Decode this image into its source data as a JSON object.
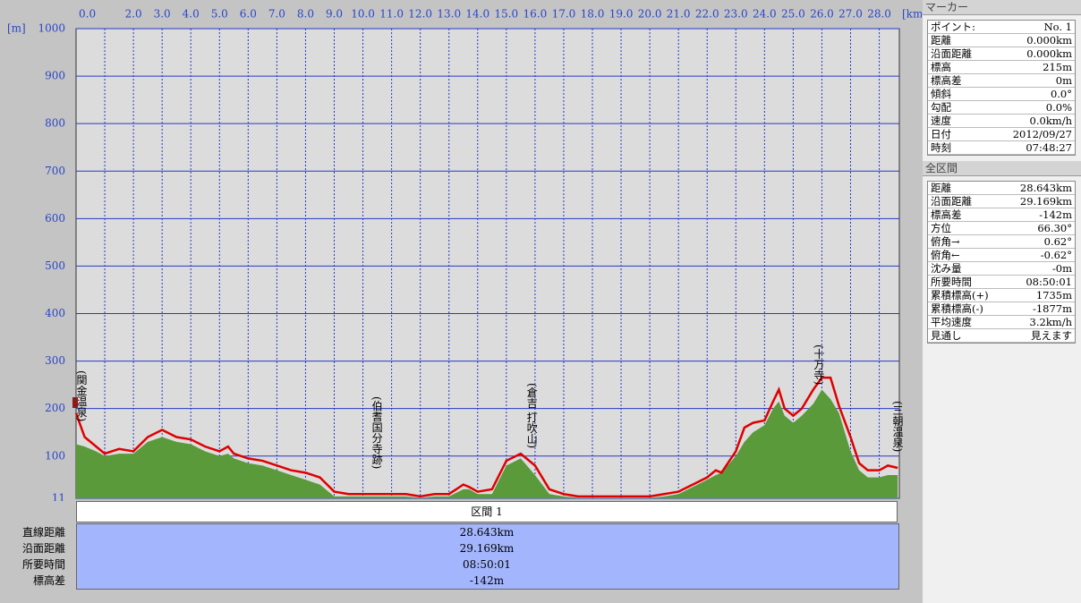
{
  "chart_data": {
    "type": "area-line",
    "y_unit": "[m]",
    "x_unit": "[km]",
    "x": [
      0,
      0.3,
      0.7,
      1,
      1.5,
      2,
      2.5,
      3,
      3.5,
      4,
      4.5,
      5,
      5.3,
      5.5,
      6,
      6.5,
      7,
      7.5,
      8,
      8.5,
      9,
      9.5,
      10,
      10.5,
      11,
      11.5,
      12,
      12.5,
      13,
      13.5,
      13.7,
      14,
      14.5,
      15,
      15.5,
      16,
      16.5,
      17,
      17.5,
      18,
      18.5,
      19,
      19.5,
      20,
      20.5,
      21,
      21.5,
      22,
      22.3,
      22.5,
      23,
      23.3,
      23.6,
      24,
      24.3,
      24.5,
      24.7,
      25,
      25.3,
      25.7,
      26,
      26.3,
      26.6,
      27,
      27.3,
      27.6,
      28,
      28.3,
      28.643
    ],
    "series": [
      {
        "kind": "area",
        "color": "#5a9a3a",
        "values": [
          125,
          120,
          110,
          100,
          105,
          105,
          130,
          140,
          130,
          125,
          110,
          100,
          105,
          95,
          85,
          80,
          70,
          60,
          50,
          40,
          15,
          15,
          15,
          15,
          15,
          15,
          12,
          15,
          15,
          30,
          30,
          20,
          20,
          80,
          95,
          60,
          20,
          15,
          12,
          12,
          12,
          12,
          12,
          12,
          15,
          20,
          35,
          50,
          60,
          65,
          100,
          130,
          150,
          165,
          200,
          215,
          185,
          170,
          185,
          210,
          240,
          220,
          190,
          110,
          70,
          55,
          55,
          60,
          60
        ]
      },
      {
        "kind": "line",
        "color": "#e00000",
        "values": [
          190,
          140,
          120,
          105,
          115,
          110,
          140,
          155,
          140,
          135,
          120,
          110,
          120,
          105,
          95,
          90,
          80,
          70,
          65,
          55,
          25,
          20,
          20,
          20,
          20,
          20,
          15,
          20,
          20,
          40,
          35,
          25,
          30,
          90,
          105,
          80,
          30,
          20,
          15,
          15,
          15,
          15,
          15,
          15,
          20,
          25,
          40,
          55,
          70,
          65,
          110,
          160,
          170,
          175,
          215,
          240,
          200,
          185,
          200,
          240,
          265,
          265,
          205,
          140,
          85,
          70,
          70,
          80,
          75
        ]
      }
    ],
    "xlim": [
      0,
      28.7
    ],
    "ylim": [
      11,
      1000
    ],
    "xticks": [
      {
        "value": 0,
        "label": "0.0"
      },
      {
        "value": 1,
        "label": null
      },
      {
        "value": 2,
        "label": "2.0"
      },
      {
        "value": 3,
        "label": "3.0"
      },
      {
        "value": 4,
        "label": "4.0"
      },
      {
        "value": 5,
        "label": "5.0"
      },
      {
        "value": 6,
        "label": "6.0"
      },
      {
        "value": 7,
        "label": "7.0"
      },
      {
        "value": 8,
        "label": "8.0"
      },
      {
        "value": 9,
        "label": "9.0"
      },
      {
        "value": 10,
        "label": "10.0"
      },
      {
        "value": 11,
        "label": "11.0"
      },
      {
        "value": 12,
        "label": "12.0"
      },
      {
        "value": 13,
        "label": "13.0"
      },
      {
        "value": 14,
        "label": "14.0"
      },
      {
        "value": 15,
        "label": "15.0"
      },
      {
        "value": 16,
        "label": "16.0"
      },
      {
        "value": 17,
        "label": "17.0"
      },
      {
        "value": 18,
        "label": "18.0"
      },
      {
        "value": 19,
        "label": "19.0"
      },
      {
        "value": 20,
        "label": "20.0"
      },
      {
        "value": 21,
        "label": "21.0"
      },
      {
        "value": 22,
        "label": "22.0"
      },
      {
        "value": 23,
        "label": "23.0"
      },
      {
        "value": 24,
        "label": "24.0"
      },
      {
        "value": 25,
        "label": "25.0"
      },
      {
        "value": 26,
        "label": "26.0"
      },
      {
        "value": 27,
        "label": "27.0"
      },
      {
        "value": 28,
        "label": "28.0"
      }
    ],
    "yticks": [
      11,
      100,
      200,
      300,
      400,
      500,
      600,
      700,
      800,
      900,
      1000
    ],
    "grid": true,
    "annotations": [
      {
        "text": "(関金温泉)",
        "x": 0
      },
      {
        "text": "(伯耆国分寺跡)",
        "x": 10.3
      },
      {
        "text": "(倉吉 打吹山)",
        "x": 15.7
      },
      {
        "text": "(十万寺)",
        "x": 25.7
      },
      {
        "text": "(三朝温泉)",
        "x": 28.6
      }
    ]
  },
  "section": {
    "title": "区間 1",
    "rows": [
      [
        "直線距離",
        "28.643km"
      ],
      [
        "沿面距離",
        "29.169km"
      ],
      [
        "所要時間",
        "08:50:01"
      ],
      [
        "標高差",
        "-142m"
      ]
    ]
  },
  "panels": [
    {
      "title": "マーカー",
      "rows": [
        [
          "ポイント:",
          "No. 1"
        ],
        [
          "距離",
          "0.000km"
        ],
        [
          "沿面距離",
          "0.000km"
        ],
        [
          "標高",
          "215m"
        ],
        [
          "標高差",
          "0m"
        ],
        [
          "傾斜",
          "0.0°"
        ],
        [
          "勾配",
          "0.0%"
        ],
        [
          "速度",
          "0.0km/h"
        ],
        [
          "日付",
          "2012/09/27"
        ],
        [
          "時刻",
          "07:48:27"
        ]
      ]
    },
    {
      "title": "全区間",
      "rows": [
        [
          "距離",
          "28.643km"
        ],
        [
          "沿面距離",
          "29.169km"
        ],
        [
          "標高差",
          "-142m"
        ],
        [
          "方位",
          "66.30°"
        ],
        [
          "俯角→",
          "0.62°"
        ],
        [
          "俯角←",
          "-0.62°"
        ],
        [
          "沈み量",
          "-0m"
        ],
        [
          "所要時間",
          "08:50:01"
        ],
        [
          "累積標高(+)",
          "1735m"
        ],
        [
          "累積標高(-)",
          "-1877m"
        ],
        [
          "平均速度",
          "3.2km/h"
        ],
        [
          "見通し",
          "見えます"
        ]
      ]
    }
  ]
}
